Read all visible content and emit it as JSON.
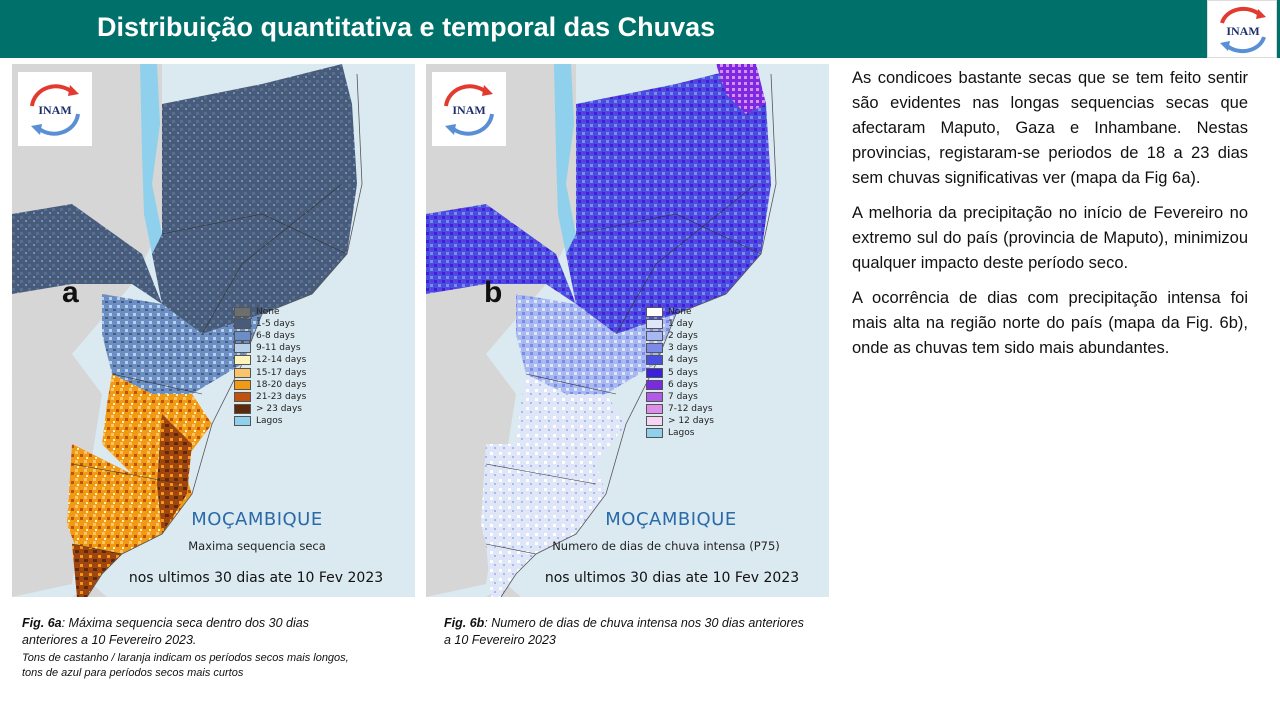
{
  "header": {
    "title": "Distribuição quantitativa e temporal das Chuvas",
    "logo_text": "INAM",
    "color": "#00706b"
  },
  "map_a": {
    "logo_text": "INAM",
    "panel_letter": "a",
    "legend": [
      {
        "label": "None",
        "color": "#6e6e6e"
      },
      {
        "label": "1-5 days",
        "color": "#485c7a"
      },
      {
        "label": "6-8 days",
        "color": "#6b8fc4"
      },
      {
        "label": "9-11 days",
        "color": "#b7d0ea"
      },
      {
        "label": "12-14 days",
        "color": "#fff3b8"
      },
      {
        "label": "15-17 days",
        "color": "#f9c46a"
      },
      {
        "label": "18-20 days",
        "color": "#f19a14"
      },
      {
        "label": "21-23 days",
        "color": "#c1520e"
      },
      {
        "label": "> 23 days",
        "color": "#5a2a0a"
      },
      {
        "label": "Lagos",
        "color": "#8fd0ec"
      }
    ],
    "country": "MOÇAMBIQUE",
    "subtitle": "Maxima sequencia seca",
    "period": "nos ultimos 30 dias ate 10 Fev 2023"
  },
  "map_b": {
    "logo_text": "INAM",
    "panel_letter": "b",
    "legend": [
      {
        "label": "None",
        "color": "#ffffff"
      },
      {
        "label": "1 day",
        "color": "#dfe6f8"
      },
      {
        "label": "2 days",
        "color": "#a8b8f0"
      },
      {
        "label": "3 days",
        "color": "#7c8ae8"
      },
      {
        "label": "4 days",
        "color": "#4a4ee0"
      },
      {
        "label": "5 days",
        "color": "#3a20d8"
      },
      {
        "label": "6 days",
        "color": "#7a2ae0"
      },
      {
        "label": "7 days",
        "color": "#b25ae8"
      },
      {
        "label": "7-12 days",
        "color": "#de8ee8"
      },
      {
        "label": "> 12 days",
        "color": "#f4d6f2"
      },
      {
        "label": "Lagos",
        "color": "#8fd0ec"
      }
    ],
    "country": "MOÇAMBIQUE",
    "subtitle": "Numero de dias de chuva intensa (P75)",
    "period": "nos ultimos 30 dias ate 10 Fev 2023"
  },
  "caption_a": {
    "fig": "Fig. 6a",
    "text": ": Máxima sequencia seca dentro dos 30 dias anteriores a 10 Fevereiro 2023.",
    "note": "Tons de castanho / laranja indicam os períodos secos mais longos, tons de azul para períodos secos mais curtos"
  },
  "caption_b": {
    "fig": "Fig. 6b",
    "text": ": Numero de dias de chuva intensa nos 30 dias anteriores a 10 Fevereiro 2023"
  },
  "body": {
    "p1": "As condicoes bastante secas que se tem feito sentir são evidentes nas longas sequencias secas que afectaram Maputo, Gaza e Inhambane. Nestas provincias, registaram-se periodos de 18 a 23 dias sem chuvas significativas ver (mapa da Fig 6a).",
    "p2": "A melhoria da precipitação no início de Fevereiro no extremo sul do país (provincia de Maputo), minimizou qualquer impacto deste período seco.",
    "p3": "A ocorrência de dias com precipitação intensa foi mais alta na região norte do país (mapa da Fig. 6b), onde as chuvas tem sido mais abundantes."
  }
}
